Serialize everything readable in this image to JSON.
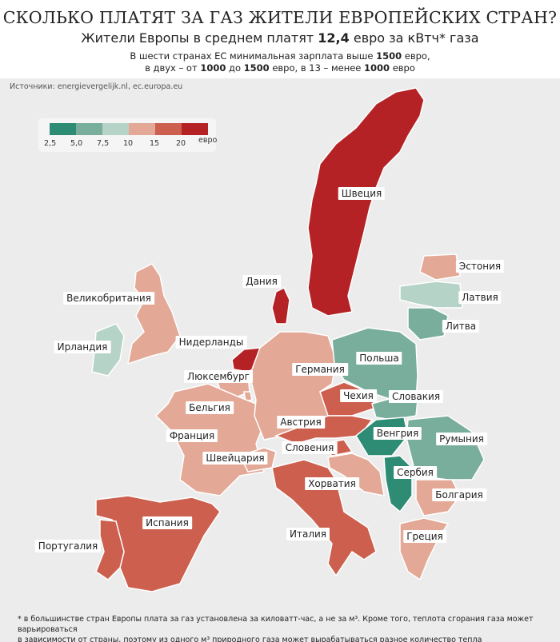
{
  "header": {
    "title": "СКОЛЬКО ПЛАТЯТ ЗА ГАЗ ЖИТЕЛИ ЕВРОПЕЙСКИХ СТРАН?",
    "subtitle_pre": "Жители Европы в среднем платят ",
    "subtitle_value": "12,4",
    "subtitle_post": " евро за кВтч* газа",
    "note_line1_pre": "В шести странах ЕС минимальная зарплата выше ",
    "note_line1_bold": "1500",
    "note_line1_post": " евро,",
    "note_line2_a": "в двух – от ",
    "note_line2_b": "1000",
    "note_line2_c": " до ",
    "note_line2_d": "1500",
    "note_line2_e": " евро, в 13 – менее ",
    "note_line2_f": "1000",
    "note_line2_g": " евро",
    "sources": "Источники: energievergelijk.nl, ec.europa.eu"
  },
  "legend": {
    "ticks": [
      "2,5",
      "5,0",
      "7,5",
      "10",
      "15",
      "20"
    ],
    "unit": "евро",
    "colors": [
      "#2e8b74",
      "#7aae9c",
      "#b6d3c8",
      "#e3a896",
      "#cc5f4d",
      "#b52226"
    ]
  },
  "countries": [
    {
      "name": "Швеция",
      "cat": 5
    },
    {
      "name": "Дания",
      "cat": 5
    },
    {
      "name": "Великобритания",
      "cat": 3
    },
    {
      "name": "Ирландия",
      "cat": 2
    },
    {
      "name": "Нидерланды",
      "cat": 5
    },
    {
      "name": "Бельгия",
      "cat": 3
    },
    {
      "name": "Люксембург",
      "cat": 3
    },
    {
      "name": "Франция",
      "cat": 3
    },
    {
      "name": "Швейцария",
      "cat": 3
    },
    {
      "name": "Германия",
      "cat": 3
    },
    {
      "name": "Польша",
      "cat": 1
    },
    {
      "name": "Чехия",
      "cat": 4
    },
    {
      "name": "Словакия",
      "cat": 1
    },
    {
      "name": "Австрия",
      "cat": 4
    },
    {
      "name": "Венгрия",
      "cat": 0
    },
    {
      "name": "Словения",
      "cat": 4
    },
    {
      "name": "Хорватия",
      "cat": 3
    },
    {
      "name": "Сербия",
      "cat": 0
    },
    {
      "name": "Румыния",
      "cat": 1
    },
    {
      "name": "Болгария",
      "cat": 3
    },
    {
      "name": "Греция",
      "cat": 3
    },
    {
      "name": "Италия",
      "cat": 4
    },
    {
      "name": "Испания",
      "cat": 4
    },
    {
      "name": "Португалия",
      "cat": 4
    },
    {
      "name": "Эстония",
      "cat": 3
    },
    {
      "name": "Латвия",
      "cat": 2
    },
    {
      "name": "Литва",
      "cat": 1
    }
  ],
  "footnote": {
    "line1_pre": "* в большинстве стран Европы плата за газ установлена за киловатт-час, а не за м³. Кроме того, теплота сгорания газа может варьироваться",
    "line2": "в зависимости от страны, поэтому из одного м³ природного газа может вырабатываться разное количество тепла"
  }
}
